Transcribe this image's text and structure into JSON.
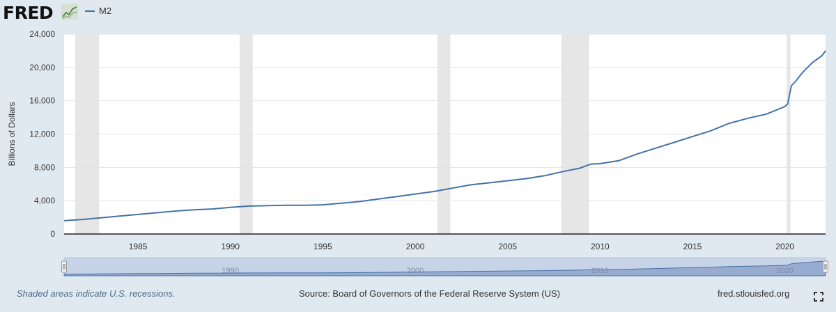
{
  "header": {
    "logo_text": "FRED",
    "legend_label": "M2"
  },
  "footer": {
    "recession_note": "Shaded areas indicate U.S. recessions.",
    "source": "Source: Board of Governors of the Federal Reserve System (US)",
    "site": "fred.stlouisfed.org"
  },
  "colors": {
    "series": "#4572a7",
    "recession": "#e6e6e6",
    "background": "#e1e9f0",
    "plot": "#ffffff"
  },
  "icons": [
    "fred-chart-icon",
    "fullscreen-icon"
  ],
  "chart_data": {
    "type": "line",
    "title": "",
    "xlabel": "",
    "ylabel": "Billions of Dollars",
    "xlim": [
      1981.0,
      2022.2
    ],
    "ylim": [
      0,
      24000
    ],
    "y_ticks": [
      0,
      4000,
      8000,
      12000,
      16000,
      20000,
      24000
    ],
    "y_tick_labels": [
      "0",
      "4,000",
      "8,000",
      "12,000",
      "16,000",
      "20,000",
      "24,000"
    ],
    "x_ticks": [
      1985,
      1990,
      1995,
      2000,
      2005,
      2010,
      2015,
      2020
    ],
    "x_tick_labels": [
      "1985",
      "1990",
      "1995",
      "2000",
      "2005",
      "2010",
      "2015",
      "2020"
    ],
    "grid": true,
    "legend": "top-left",
    "recessions": [
      [
        1981.6,
        1982.9
      ],
      [
        1990.5,
        1991.2
      ],
      [
        2001.2,
        2001.9
      ],
      [
        2007.9,
        2009.4
      ],
      [
        2020.1,
        2020.3
      ]
    ],
    "navigator_labels": [
      "1990",
      "2000",
      "2010",
      "2020"
    ],
    "series": [
      {
        "name": "M2",
        "x": [
          1981.0,
          1982.0,
          1983.0,
          1984.0,
          1985.0,
          1986.0,
          1987.0,
          1988.0,
          1989.0,
          1990.0,
          1991.0,
          1992.0,
          1993.0,
          1994.0,
          1995.0,
          1996.0,
          1997.0,
          1998.0,
          1999.0,
          2000.0,
          2001.0,
          2002.0,
          2003.0,
          2004.0,
          2005.0,
          2006.0,
          2007.0,
          2008.0,
          2008.9,
          2009.5,
          2010.0,
          2011.0,
          2012.0,
          2013.0,
          2014.0,
          2015.0,
          2016.0,
          2017.0,
          2018.0,
          2019.0,
          2020.0,
          2020.15,
          2020.35,
          2020.6,
          2021.0,
          2021.5,
          2022.0,
          2022.2
        ],
        "values": [
          1600,
          1750,
          1950,
          2150,
          2350,
          2550,
          2750,
          2900,
          3000,
          3200,
          3350,
          3400,
          3450,
          3450,
          3500,
          3700,
          3900,
          4200,
          4500,
          4800,
          5100,
          5500,
          5900,
          6150,
          6400,
          6650,
          7000,
          7500,
          7900,
          8400,
          8450,
          8800,
          9600,
          10300,
          11000,
          11700,
          12400,
          13300,
          13900,
          14400,
          15300,
          15600,
          17800,
          18400,
          19500,
          20600,
          21400,
          22000
        ]
      }
    ]
  }
}
